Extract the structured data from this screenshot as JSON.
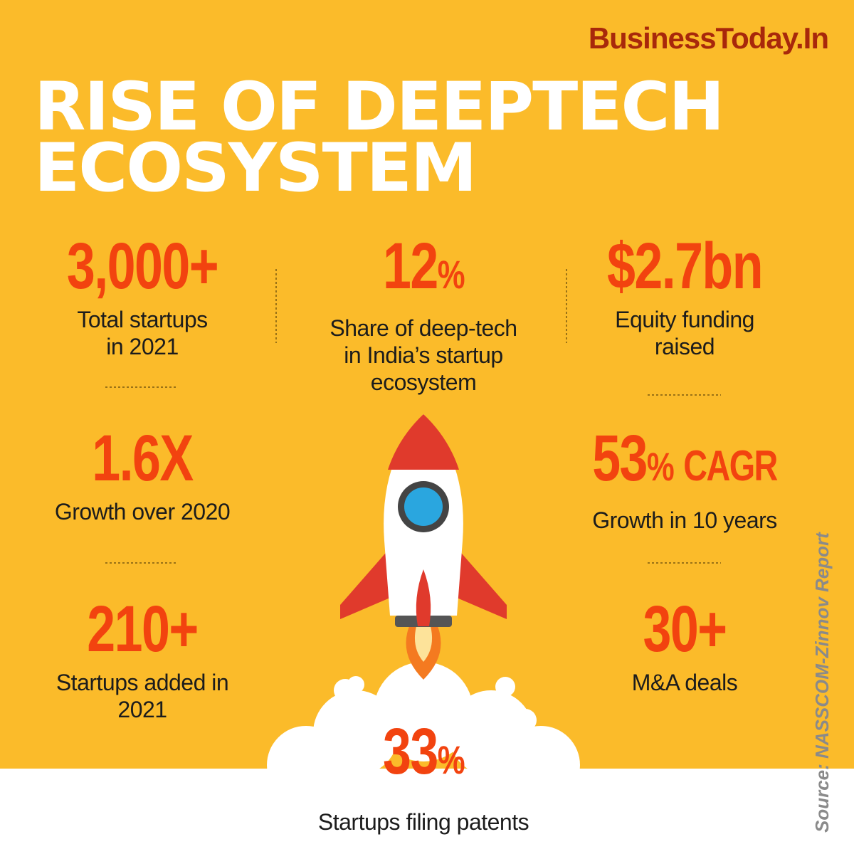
{
  "brand": "BusinessToday.In",
  "title": {
    "lines": [
      "RISE OF DEEPTECH",
      "ECOSYSTEM"
    ]
  },
  "stats": [
    {
      "number": "3,000+",
      "label": [
        "Total startups",
        "in 2021"
      ]
    },
    {
      "number": "12",
      "unit": "%",
      "label": [
        "Share of deep-tech",
        "in India’s startup",
        "ecosystem"
      ]
    },
    {
      "number": "$2.7bn",
      "label": [
        "Equity funding",
        "raised"
      ]
    },
    {
      "number": "1.6X",
      "label": [
        "Growth over 2020"
      ]
    },
    {
      "number": "53",
      "unit": "%",
      "suffix": "CAGR",
      "label": [
        "Growth in 10 years"
      ]
    },
    {
      "number": "210+",
      "label": [
        "Startups added in",
        "2021"
      ]
    },
    {
      "number": "30+",
      "label": [
        "M&A deals"
      ]
    },
    {
      "number": "33",
      "unit": "%",
      "label": [
        "Startups filing patents"
      ]
    }
  ],
  "source": "Source: NASSCOM-Zinnov Report"
}
